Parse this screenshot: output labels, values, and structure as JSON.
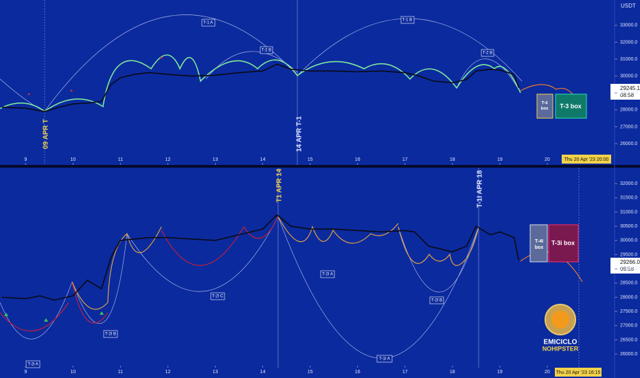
{
  "chart_data": [
    {
      "type": "line",
      "color": "#0a0a14",
      "x": [
        8.5,
        9.0,
        9.4,
        9.7,
        10.0,
        10.3,
        10.6,
        10.8,
        11.0,
        11.3,
        11.6,
        12.0,
        12.5,
        13.0,
        13.5,
        14.0,
        14.3,
        14.6,
        15.0,
        15.5,
        16.0,
        16.5,
        17.0,
        17.3,
        17.6,
        18.0,
        18.3,
        18.5,
        18.8,
        19.0,
        19.3,
        19.4
      ],
      "values": [
        28150,
        28100,
        27900,
        28150,
        28350,
        28400,
        28500,
        29500,
        29900,
        30100,
        30200,
        30100,
        30000,
        30050,
        30200,
        30300,
        30700,
        30400,
        30300,
        30300,
        30250,
        30300,
        30200,
        30000,
        29700,
        29600,
        29800,
        30300,
        30400,
        30350,
        30100,
        29300
      ],
      "xlim": [
        8.46,
        21.42
      ],
      "xticks": [
        9,
        10,
        11,
        12,
        13,
        14,
        15,
        16,
        17,
        18,
        19,
        20
      ],
      "ylim": [
        24740,
        34500
      ],
      "yticks": [
        {
          "value": 26000,
          "label": "26000.0"
        },
        {
          "value": 27000,
          "label": "27000.0"
        },
        {
          "value": 28000,
          "label": "28000.0"
        },
        {
          "value": 29000,
          "label": "29000.0"
        },
        {
          "value": 30000,
          "label": "30000.0"
        },
        {
          "value": 31000,
          "label": "31000.0"
        },
        {
          "value": 32000,
          "label": "32000.0"
        },
        {
          "value": 33000,
          "label": "33000.0"
        }
      ],
      "axis_unit": "USDT",
      "annotations": [
        "T-1 A",
        "T-1 B",
        "T-2 B",
        "T-2 B",
        "09 APR T",
        "14 APR T-1",
        "T-4",
        "box",
        "T-3 box"
      ],
      "last_price": "29245.1",
      "countdown": "08:58",
      "cursor_date": "Thu 20 Apr '23   20:00"
    },
    {
      "type": "line",
      "color": "#0a0a14",
      "x": [
        8.5,
        9.0,
        9.3,
        9.6,
        10.0,
        10.3,
        10.6,
        10.8,
        11.0,
        11.3,
        11.6,
        12.0,
        12.5,
        13.0,
        13.5,
        14.0,
        14.3,
        14.6,
        15.0,
        15.5,
        16.0,
        16.5,
        17.0,
        17.2,
        17.5,
        18.0,
        18.3,
        18.5,
        18.8,
        19.0,
        19.3,
        19.4
      ],
      "values": [
        28000,
        27950,
        28050,
        27900,
        28050,
        28600,
        28300,
        29400,
        30000,
        30050,
        30100,
        30100,
        30050,
        30000,
        30200,
        30400,
        30900,
        30500,
        30400,
        30400,
        30350,
        30300,
        30350,
        30300,
        29800,
        29600,
        29800,
        30500,
        30200,
        30300,
        30100,
        29300
      ],
      "xlim": [
        8.46,
        21.42
      ],
      "xticks": [
        9,
        10,
        11,
        12,
        13,
        14,
        15,
        16,
        17,
        18,
        19,
        20
      ],
      "ylim": [
        25520,
        32560
      ],
      "yticks": [
        {
          "value": 26000,
          "label": "26000.0"
        },
        {
          "value": 26500,
          "label": "26500.0"
        },
        {
          "value": 27000,
          "label": "27000.0"
        },
        {
          "value": 27500,
          "label": "27500.0"
        },
        {
          "value": 28000,
          "label": "28000.0"
        },
        {
          "value": 28500,
          "label": "28500.0"
        },
        {
          "value": 29000,
          "label": "29000.0"
        },
        {
          "value": 29500,
          "label": "29500.0"
        },
        {
          "value": 30000,
          "label": "30000.0"
        },
        {
          "value": 30500,
          "label": "30500.0"
        },
        {
          "value": 31000,
          "label": "31000.0"
        },
        {
          "value": 31500,
          "label": "31500.0"
        },
        {
          "value": 32000,
          "label": "32000.0"
        }
      ],
      "annotations": [
        "T1 APR 14",
        "T-1I APR 18",
        "T-4I",
        "box",
        "T-3i box",
        "T-2I A",
        "T-2I C",
        "T-2I B",
        "T-2I B",
        "T-1I A",
        "T-2i A"
      ],
      "last_price": "29266.0",
      "countdown": "08:58",
      "cursor_date": "Thu 20 Apr '23   16:15"
    }
  ],
  "logo": {
    "line1": "EMICICLO",
    "line2": "NOHIPSTER"
  }
}
